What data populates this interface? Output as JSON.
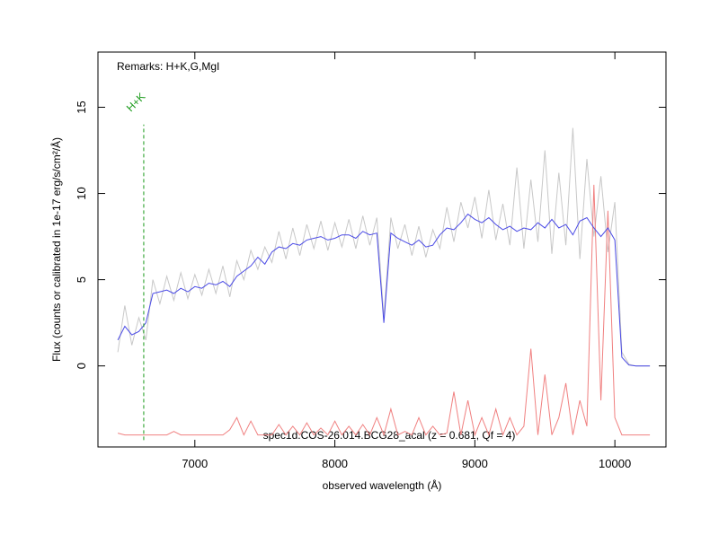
{
  "chart_data": {
    "type": "line",
    "remarks": "Remarks: H+K,G,MgI",
    "caption": "spec1d.COS-26.014.BCG28_acal (z = 0.681, Qf = 4)",
    "xlabel": "observed wavelength (Å)",
    "ylabel": "Flux (counts or calibrated in 1e-17 erg/s/cm²/Å)",
    "xlim": [
      6308,
      10365
    ],
    "ylim": [
      -4.7,
      18.2
    ],
    "xticks": [
      7000,
      8000,
      9000,
      10000
    ],
    "yticks": [
      0,
      5,
      10,
      15
    ],
    "x": [
      6450,
      6500,
      6550,
      6600,
      6650,
      6700,
      6750,
      6800,
      6850,
      6900,
      6950,
      7000,
      7050,
      7100,
      7150,
      7200,
      7250,
      7300,
      7350,
      7400,
      7450,
      7500,
      7550,
      7600,
      7650,
      7700,
      7750,
      7800,
      7850,
      7900,
      7950,
      8000,
      8050,
      8100,
      8150,
      8200,
      8250,
      8300,
      8350,
      8400,
      8450,
      8500,
      8550,
      8600,
      8650,
      8700,
      8750,
      8800,
      8850,
      8900,
      8950,
      9000,
      9050,
      9100,
      9150,
      9200,
      9250,
      9300,
      9350,
      9400,
      9450,
      9500,
      9550,
      9600,
      9650,
      9700,
      9750,
      9800,
      9850,
      9900,
      9950,
      10000,
      10050,
      10100,
      10150,
      10200,
      10250
    ],
    "series": [
      {
        "color": "#c8c8c8",
        "values": [
          0.8,
          3.5,
          1.2,
          2.8,
          1.5,
          5.0,
          3.6,
          5.2,
          3.8,
          5.4,
          3.9,
          5.3,
          4.1,
          5.6,
          4.2,
          5.8,
          4.0,
          6.1,
          5.0,
          6.7,
          5.6,
          6.9,
          6.0,
          7.8,
          6.2,
          8.0,
          6.4,
          8.2,
          6.8,
          8.4,
          6.7,
          8.3,
          6.9,
          8.5,
          6.8,
          8.7,
          7.0,
          8.6,
          2.8,
          8.6,
          6.8,
          8.2,
          6.4,
          8.1,
          6.3,
          7.9,
          6.8,
          9.2,
          7.2,
          9.5,
          8.0,
          9.8,
          7.4,
          10.2,
          7.3,
          9.4,
          7.0,
          11.5,
          6.8,
          10.8,
          7.2,
          12.5,
          6.5,
          11.2,
          7.0,
          13.8,
          6.2,
          12.0,
          7.5,
          11.0,
          6.6,
          9.5,
          0.8,
          0.1,
          0.0,
          0.0,
          0.0
        ]
      },
      {
        "color": "#f08080",
        "values": [
          -3.9,
          -4.0,
          -4.0,
          -4.0,
          -4.0,
          -4.0,
          -4.0,
          -4.0,
          -3.8,
          -4.0,
          -4.0,
          -4.0,
          -4.0,
          -4.0,
          -4.0,
          -4.0,
          -3.7,
          -3.0,
          -4.0,
          -3.2,
          -4.0,
          -4.0,
          -4.0,
          -3.4,
          -4.0,
          -3.5,
          -4.0,
          -3.3,
          -4.0,
          -3.6,
          -4.0,
          -3.2,
          -4.0,
          -3.5,
          -4.0,
          -3.4,
          -4.0,
          -3.0,
          -4.0,
          -2.5,
          -4.0,
          -3.8,
          -4.0,
          -3.0,
          -4.0,
          -3.5,
          -4.0,
          -3.9,
          -1.5,
          -4.0,
          -2.0,
          -4.0,
          -3.0,
          -4.0,
          -2.5,
          -4.0,
          -3.0,
          -4.0,
          -3.5,
          1.0,
          -4.0,
          -0.5,
          -4.0,
          -3.0,
          -1.0,
          -4.0,
          -2.0,
          -3.5,
          10.5,
          -2.0,
          9.0,
          -3.0,
          -4.0,
          -4.0,
          -4.0,
          -4.0,
          -4.0
        ]
      },
      {
        "color": "#4a4ae6",
        "values": [
          1.5,
          2.3,
          1.8,
          2.0,
          2.5,
          4.2,
          4.3,
          4.4,
          4.2,
          4.5,
          4.3,
          4.6,
          4.5,
          4.8,
          4.7,
          4.9,
          4.6,
          5.2,
          5.5,
          5.8,
          6.3,
          5.9,
          6.6,
          6.9,
          6.8,
          7.1,
          7.0,
          7.3,
          7.4,
          7.5,
          7.3,
          7.4,
          7.6,
          7.6,
          7.4,
          7.8,
          7.6,
          7.7,
          2.5,
          7.7,
          7.4,
          7.2,
          7.0,
          7.3,
          6.9,
          7.0,
          7.6,
          8.0,
          7.9,
          8.3,
          8.8,
          8.5,
          8.3,
          8.6,
          8.2,
          7.9,
          8.1,
          7.8,
          8.0,
          7.9,
          8.3,
          8.0,
          8.5,
          8.0,
          8.2,
          7.6,
          8.4,
          8.6,
          8.0,
          7.5,
          8.0,
          7.3,
          0.5,
          0.05,
          0.0,
          0.0,
          0.0
        ]
      }
    ],
    "annotations": [
      {
        "text": "H+K",
        "x": 6635,
        "ymin": -4.3,
        "ymax": 14,
        "color": "#1a9a1a"
      }
    ]
  }
}
